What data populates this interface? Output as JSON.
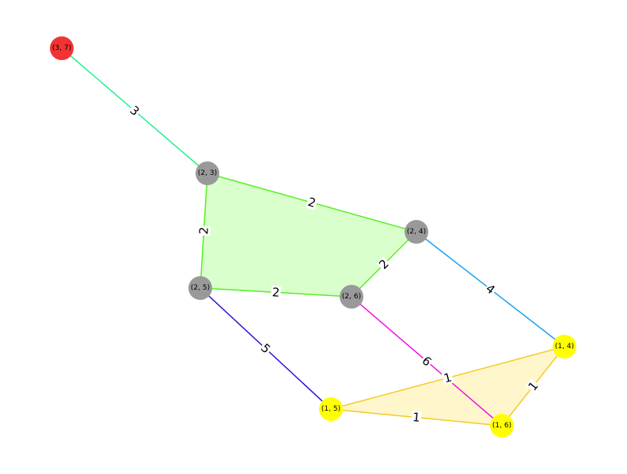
{
  "nodes": [
    {
      "id": "n37",
      "label": "(3, 7)",
      "color": "#f33333"
    },
    {
      "id": "n23",
      "label": "(2, 3)",
      "color": "#999999"
    },
    {
      "id": "n24",
      "label": "(2, 4)",
      "color": "#999999"
    },
    {
      "id": "n25",
      "label": "(2, 5)",
      "color": "#999999"
    },
    {
      "id": "n26",
      "label": "(2, 6)",
      "color": "#999999"
    },
    {
      "id": "n14",
      "label": "(1, 4)",
      "color": "#ffff00"
    },
    {
      "id": "n15",
      "label": "(1, 5)",
      "color": "#ffff00"
    },
    {
      "id": "n16",
      "label": "(1, 6)",
      "color": "#ffff00"
    }
  ],
  "edges": [
    {
      "from": "n37",
      "to": "n23",
      "weight": "3",
      "color": "#22f28a"
    },
    {
      "from": "n23",
      "to": "n24",
      "weight": "2",
      "color": "#55f022"
    },
    {
      "from": "n23",
      "to": "n25",
      "weight": "2",
      "color": "#55f022"
    },
    {
      "from": "n25",
      "to": "n26",
      "weight": "2",
      "color": "#55f022"
    },
    {
      "from": "n26",
      "to": "n24",
      "weight": "2",
      "color": "#55f022"
    },
    {
      "from": "n24",
      "to": "n14",
      "weight": "4",
      "color": "#1aa3f0"
    },
    {
      "from": "n25",
      "to": "n15",
      "weight": "5",
      "color": "#2a14d6"
    },
    {
      "from": "n26",
      "to": "n16",
      "weight": "6",
      "color": "#f014e0"
    },
    {
      "from": "n15",
      "to": "n14",
      "weight": "1",
      "color": "#f2cc22"
    },
    {
      "from": "n15",
      "to": "n16",
      "weight": "1",
      "color": "#f2cc22"
    },
    {
      "from": "n14",
      "to": "n16",
      "weight": "1",
      "color": "#f2cc22"
    }
  ],
  "regions": [
    {
      "nodes": [
        "n23",
        "n24",
        "n26",
        "n25"
      ],
      "color": "#ccffbb"
    },
    {
      "nodes": [
        "n15",
        "n14",
        "n16"
      ],
      "color": "#fff3bb"
    }
  ]
}
